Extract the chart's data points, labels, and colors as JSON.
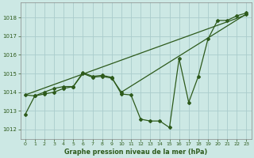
{
  "xlabel": "Graphe pression niveau de la mer (hPa)",
  "bg_color": "#cce8e4",
  "grid_color": "#aacccc",
  "line_color": "#2d5a1b",
  "xlim": [
    -0.5,
    23.5
  ],
  "ylim": [
    1011.5,
    1018.8
  ],
  "yticks": [
    1012,
    1013,
    1014,
    1015,
    1016,
    1017,
    1018
  ],
  "xticks": [
    0,
    1,
    2,
    3,
    4,
    5,
    6,
    7,
    8,
    9,
    10,
    11,
    12,
    13,
    14,
    15,
    16,
    17,
    18,
    19,
    20,
    21,
    22,
    23
  ],
  "series1_x": [
    0,
    1,
    2,
    3,
    4,
    5,
    6,
    7,
    8,
    9,
    10,
    11,
    12,
    13,
    14,
    15,
    16,
    17,
    18,
    19,
    20,
    21,
    22,
    23
  ],
  "series1_y": [
    1012.8,
    1013.8,
    1013.9,
    1014.0,
    1014.2,
    1014.3,
    1015.05,
    1014.85,
    1014.9,
    1014.8,
    1013.9,
    1013.85,
    1012.55,
    1012.45,
    1012.45,
    1012.1,
    1015.8,
    1013.45,
    1014.85,
    1016.85,
    1017.85,
    1017.85,
    1018.1,
    1018.25
  ],
  "series2_x": [
    0,
    1,
    2,
    3,
    4,
    5,
    6,
    7,
    8,
    9,
    10,
    23
  ],
  "series2_y": [
    1013.85,
    1013.8,
    1014.0,
    1014.2,
    1014.3,
    1014.3,
    1015.0,
    1014.8,
    1014.85,
    1014.75,
    1014.0,
    1018.2
  ],
  "series3_x": [
    0,
    23
  ],
  "series3_y": [
    1013.85,
    1018.15
  ]
}
